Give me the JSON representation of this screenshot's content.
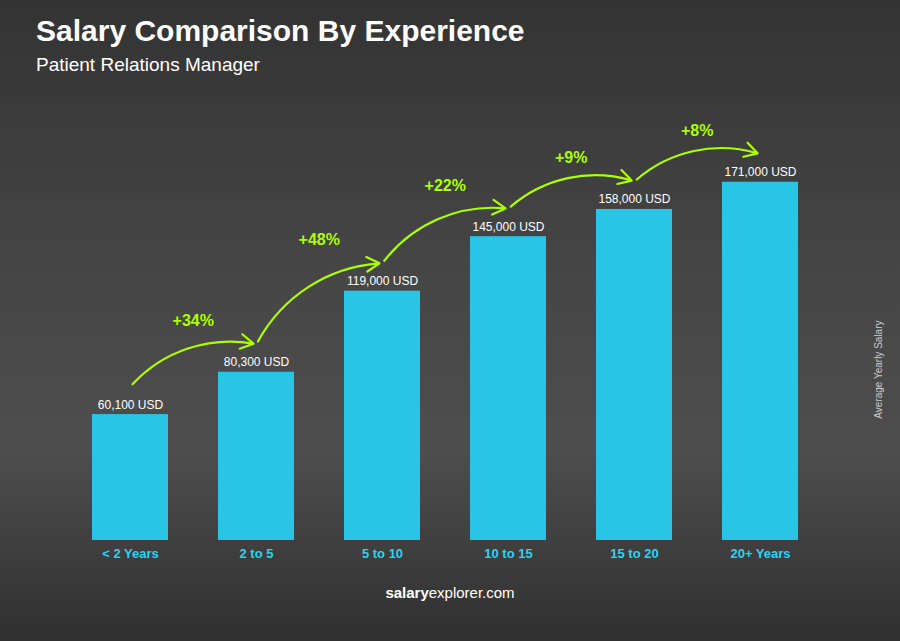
{
  "chart_data": {
    "type": "bar",
    "title": "Salary Comparison By Experience",
    "subtitle": "Patient Relations Manager",
    "ylabel": "Average Yearly Salary",
    "categories": [
      "< 2 Years",
      "2 to 5",
      "5 to 10",
      "10 to 15",
      "15 to 20",
      "20+ Years"
    ],
    "values": [
      60100,
      80300,
      119000,
      145000,
      158000,
      171000
    ],
    "value_labels": [
      "60,100 USD",
      "80,300 USD",
      "119,000 USD",
      "145,000 USD",
      "158,000 USD",
      "171,000 USD"
    ],
    "data_labels": true,
    "color": "#29c5e6",
    "ylim": [
      0,
      210000
    ],
    "tick_labels": "x",
    "annotations": [
      {
        "text": "+34%",
        "from": "< 2 Years",
        "to": "2 to 5"
      },
      {
        "text": "+48%",
        "from": "2 to 5",
        "to": "5 to 10"
      },
      {
        "text": "+22%",
        "from": "5 to 10",
        "to": "10 to 15"
      },
      {
        "text": "+9%",
        "from": "10 to 15",
        "to": "15 to 20"
      },
      {
        "text": "+8%",
        "from": "15 to 20",
        "to": "20+ Years"
      }
    ],
    "footer": [
      "salary",
      "explorer.com"
    ]
  }
}
